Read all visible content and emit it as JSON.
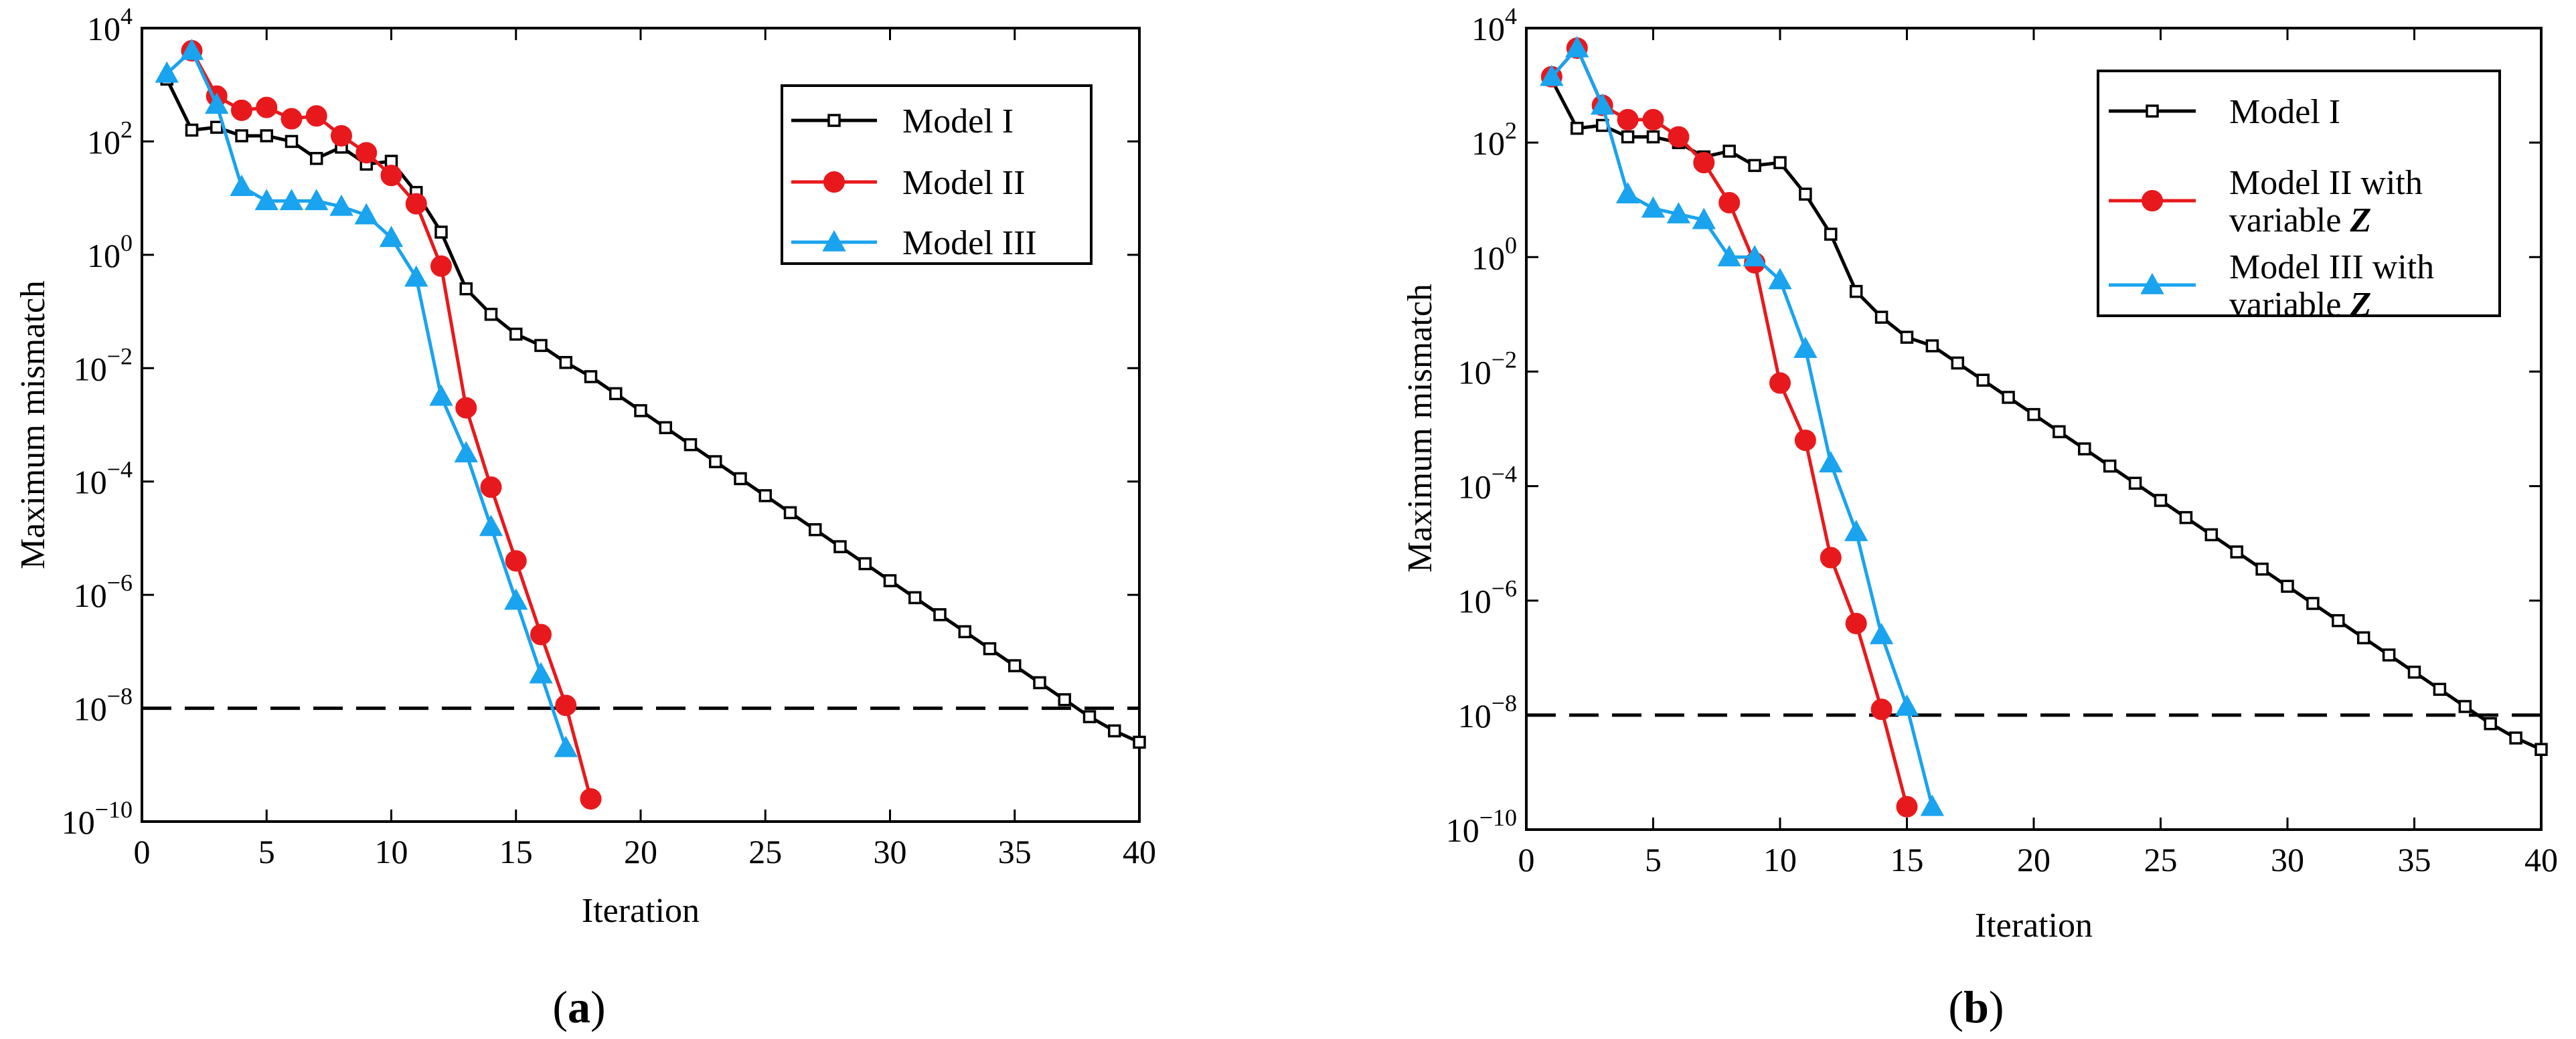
{
  "chart_data": [
    {
      "type": "line",
      "panel_label": "a",
      "title": "",
      "xlabel": "Iteration",
      "ylabel": "Maximum mismatch",
      "xlim": [
        0,
        40
      ],
      "ylim_log10": [
        -10,
        4
      ],
      "yscale": "log",
      "x_ticks": [
        "0",
        "5",
        "10",
        "15",
        "20",
        "25",
        "30",
        "35",
        "40"
      ],
      "x_tick_values": [
        0,
        5,
        10,
        15,
        20,
        25,
        30,
        35,
        40
      ],
      "y_tick_exponents": [
        "4",
        "2",
        "0",
        "−2",
        "−4",
        "−6",
        "−8",
        "−10"
      ],
      "y_tick_base": "10",
      "legend_position": "top-right",
      "threshold": {
        "value": 1e-08,
        "style": "dashed"
      },
      "series": [
        {
          "name": "Model I",
          "legend_lines": [
            "Model I"
          ],
          "color": "#000000",
          "marker": "square",
          "x": [
            1,
            2,
            3,
            4,
            5,
            6,
            7,
            8,
            9,
            10,
            11,
            12,
            13,
            14,
            15,
            16,
            17,
            18,
            19,
            20,
            21,
            22,
            23,
            24,
            25,
            26,
            27,
            28,
            29,
            30,
            31,
            32,
            33,
            34,
            35,
            36,
            37,
            38,
            39,
            40
          ],
          "log10_y": [
            3.1,
            2.2,
            2.25,
            2.1,
            2.1,
            2.0,
            1.7,
            1.9,
            1.6,
            1.65,
            1.1,
            0.4,
            -0.6,
            -1.05,
            -1.4,
            -1.6,
            -1.9,
            -2.15,
            -2.45,
            -2.75,
            -3.05,
            -3.35,
            -3.65,
            -3.95,
            -4.25,
            -4.55,
            -4.85,
            -5.15,
            -5.45,
            -5.75,
            -6.05,
            -6.35,
            -6.65,
            -6.95,
            -7.25,
            -7.55,
            -7.85,
            -8.15,
            -8.4,
            -8.6
          ]
        },
        {
          "name": "Model II",
          "legend_lines": [
            "Model II"
          ],
          "color": "#e8191c",
          "marker": "circle",
          "x": [
            2,
            3,
            4,
            5,
            6,
            7,
            8,
            9,
            10,
            11,
            12,
            13,
            14,
            15,
            16,
            17,
            18
          ],
          "log10_y": [
            3.6,
            2.8,
            2.55,
            2.6,
            2.4,
            2.45,
            2.1,
            1.8,
            1.4,
            0.9,
            -0.2,
            -2.7,
            -4.1,
            -5.4,
            -6.7,
            -7.95,
            -9.6
          ]
        },
        {
          "name": "Model III",
          "legend_lines": [
            "Model III"
          ],
          "color": "#1aa3ee",
          "marker": "triangle",
          "x": [
            1,
            2,
            3,
            4,
            5,
            6,
            7,
            8,
            9,
            10,
            11,
            12,
            13,
            14,
            15,
            16,
            17
          ],
          "log10_y": [
            3.2,
            3.6,
            2.65,
            1.2,
            0.95,
            0.95,
            0.95,
            0.85,
            0.7,
            0.3,
            -0.4,
            -2.5,
            -3.5,
            -4.8,
            -6.1,
            -7.4,
            -8.7
          ]
        }
      ]
    },
    {
      "type": "line",
      "panel_label": "b",
      "title": "",
      "xlabel": "Iteration",
      "ylabel": "Maximum mismatch",
      "xlim": [
        0,
        40
      ],
      "ylim_log10": [
        -10,
        4
      ],
      "yscale": "log",
      "x_ticks": [
        "0",
        "5",
        "10",
        "15",
        "20",
        "25",
        "30",
        "35",
        "40"
      ],
      "x_tick_values": [
        0,
        5,
        10,
        15,
        20,
        25,
        30,
        35,
        40
      ],
      "y_tick_exponents": [
        "4",
        "2",
        "0",
        "−2",
        "−4",
        "−6",
        "−8",
        "−10"
      ],
      "y_tick_base": "10",
      "legend_position": "top-right",
      "threshold": {
        "value": 1e-08,
        "style": "dashed"
      },
      "series": [
        {
          "name": "Model I",
          "legend_lines": [
            "Model I"
          ],
          "color": "#000000",
          "marker": "square",
          "x": [
            1,
            2,
            3,
            4,
            5,
            6,
            7,
            8,
            9,
            10,
            11,
            12,
            13,
            14,
            15,
            16,
            17,
            18,
            19,
            20,
            21,
            22,
            23,
            24,
            25,
            26,
            27,
            28,
            29,
            30,
            31,
            32,
            33,
            34,
            35,
            36,
            37,
            38,
            39,
            40
          ],
          "log10_y": [
            3.1,
            2.25,
            2.3,
            2.1,
            2.1,
            2.0,
            1.75,
            1.85,
            1.6,
            1.65,
            1.1,
            0.4,
            -0.6,
            -1.05,
            -1.4,
            -1.55,
            -1.85,
            -2.15,
            -2.45,
            -2.75,
            -3.05,
            -3.35,
            -3.65,
            -3.95,
            -4.25,
            -4.55,
            -4.85,
            -5.15,
            -5.45,
            -5.75,
            -6.05,
            -6.35,
            -6.65,
            -6.95,
            -7.25,
            -7.55,
            -7.85,
            -8.15,
            -8.4,
            -8.6
          ]
        },
        {
          "name": "Model II with variable Z",
          "legend_lines": [
            "Model II with",
            "variable Z"
          ],
          "color": "#e8191c",
          "marker": "circle",
          "x": [
            1,
            2,
            3,
            4,
            5,
            6,
            7,
            8,
            9,
            10,
            11,
            12,
            13,
            14,
            15
          ],
          "log10_y": [
            3.15,
            3.65,
            2.65,
            2.4,
            2.4,
            2.1,
            1.65,
            0.95,
            -0.1,
            -2.2,
            -3.2,
            -5.25,
            -6.4,
            -7.9,
            -9.6
          ]
        },
        {
          "name": "Model III with variable Z",
          "legend_lines": [
            "Model III with",
            "variable Z"
          ],
          "color": "#1aa3ee",
          "marker": "triangle",
          "x": [
            1,
            2,
            3,
            4,
            5,
            6,
            7,
            8,
            9,
            10,
            11,
            12,
            13,
            14,
            15,
            16
          ],
          "log10_y": [
            3.15,
            3.65,
            2.65,
            1.1,
            0.85,
            0.75,
            0.65,
            0.0,
            0.0,
            -0.4,
            -1.6,
            -3.6,
            -4.8,
            -6.6,
            -7.85,
            -9.6
          ]
        }
      ]
    }
  ]
}
